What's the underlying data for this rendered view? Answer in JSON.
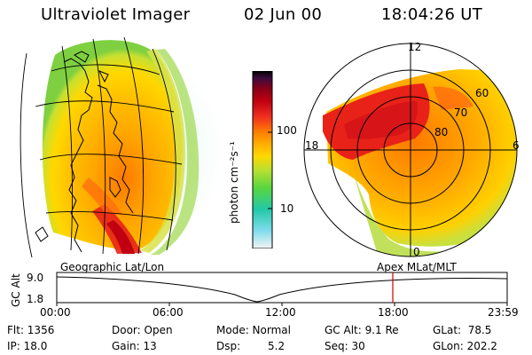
{
  "header": {
    "instrument": "Ultraviolet Imager",
    "date": "02 Jun 00",
    "time": "18:04:26 UT"
  },
  "colorbar": {
    "unit": "photon cm⁻²s⁻¹",
    "tick_labels": [
      "100",
      "10"
    ]
  },
  "polar_plot": {
    "mlt_labels": [
      "12",
      "18",
      "6",
      "0"
    ],
    "mlat_labels": [
      "60",
      "70",
      "80"
    ]
  },
  "altitude_panel": {
    "left_label": "Geographic Lat/Lon",
    "right_label": "Apex MLat/MLT",
    "axis_label": "GC Alt",
    "y_ticks": [
      "9.0",
      "1.8"
    ],
    "x_ticks": [
      "00:00",
      "06:00",
      "12:00",
      "18:00",
      "23:59"
    ]
  },
  "info": {
    "flt": "Flt: 1356",
    "ip": "IP: 18.0",
    "door": "Door: Open",
    "gain": "Gain: 13",
    "mode": "Mode: Normal",
    "dsp_label": "Dsp:",
    "dsp_value": "5.2",
    "gc_alt": "GC Alt: 9.1 Re",
    "seq": "Seq: 30",
    "glat": "GLat:  78.5",
    "glon": "GLon: 202.2"
  },
  "colors": {
    "background": "#ffffff",
    "marker": "#cc0000",
    "scale": [
      "#f4f4f4",
      "#7fdcec",
      "#22c8a8",
      "#58d640",
      "#b8e030",
      "#ffd800",
      "#ffa600",
      "#ff7a00",
      "#f03020",
      "#c00010",
      "#880018",
      "#3c0c3c",
      "#000000"
    ]
  }
}
